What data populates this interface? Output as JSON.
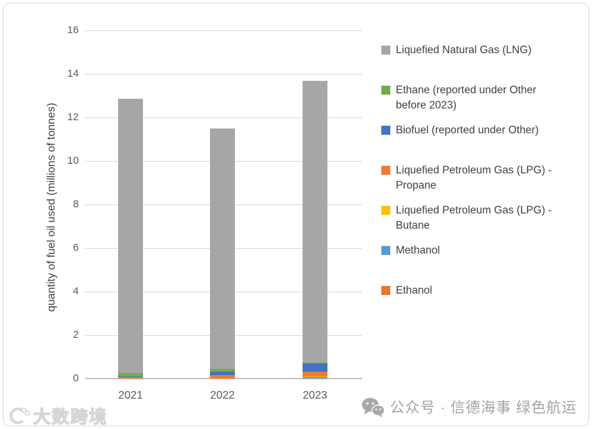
{
  "watermarks": {
    "bottom_left": "大数跨境",
    "bottom_left_logo": "dashu-kuajing-logo",
    "bottom_right": "公众号 · 信德海事 绿色航运",
    "bottom_right_icon": "wechat-icon"
  },
  "chart_data": {
    "type": "bar",
    "stacked": true,
    "title": "",
    "xlabel": "",
    "ylabel": "quantity of fuel oil used (millions of tonnes)",
    "ylim": [
      0,
      16
    ],
    "yticks": [
      0,
      2,
      4,
      6,
      8,
      10,
      12,
      14,
      16
    ],
    "grid": true,
    "legend_position": "right",
    "categories": [
      "2021",
      "2022",
      "2023"
    ],
    "totals": [
      12.85,
      11.5,
      13.68
    ],
    "series": [
      {
        "name": "Liquefied Natural Gas (LNG)",
        "color": "#a6a6a6",
        "values": [
          12.6,
          11.04,
          12.94
        ]
      },
      {
        "name": "Ethane (reported under Other before 2023)",
        "color": "#70ad47",
        "values": [
          0.14,
          0.15,
          0.04
        ]
      },
      {
        "name": "Biofuel (reported under Other)",
        "color": "#4472c4",
        "values": [
          0.06,
          0.16,
          0.37
        ]
      },
      {
        "name": "Liquefied Petroleum Gas (LPG) - Propane",
        "color": "#ed7d31",
        "values": [
          0.05,
          0.15,
          0.22
        ]
      },
      {
        "name": "Liquefied Petroleum Gas (LPG) - Butane",
        "color": "#ffc000",
        "values": [
          0.0,
          0.0,
          0.05
        ]
      },
      {
        "name": "Methanol",
        "color": "#5b9bd5",
        "values": [
          0.0,
          0.0,
          0.06
        ]
      },
      {
        "name": "Ethanol",
        "color": "#e8762c",
        "values": [
          0.0,
          0.0,
          0.0
        ]
      }
    ]
  }
}
